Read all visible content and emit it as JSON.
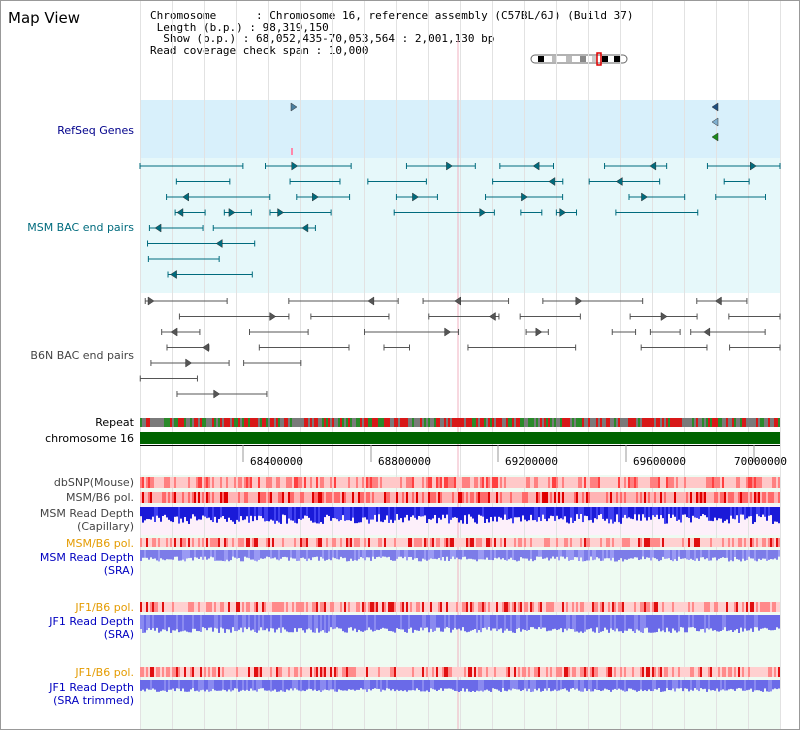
{
  "header": {
    "title": "Map View",
    "info_lines": [
      "Chromosome      : Chromosome 16, reference assembly (C57BL/6J) (Build 37)",
      " Length (b.p.) : 98,319,150",
      "  Show (b.p.) : 68,052,435-70,053,564 : 2,001,130 bp",
      "Read coverage check span : 10,000"
    ]
  },
  "tracks": {
    "refseq": "RefSeq Genes",
    "msm_bac": "MSM BAC end pairs",
    "b6n_bac": "B6N BAC end pairs",
    "repeat": "Repeat",
    "chromosome": "chromosome 16",
    "dbsnp": "dbSNP(Mouse)",
    "msm_b6_pol": "MSM/B6 pol.",
    "msm_depth_cap_1": "MSM Read Depth",
    "msm_depth_cap_2": "(Capillary)",
    "msm_b6_pol_2": "MSM/B6 pol.",
    "msm_depth_sra_1": "MSM Read Depth",
    "msm_depth_sra_2": "(SRA)",
    "jf1_b6_pol": "JF1/B6 pol.",
    "jf1_depth_sra_1": "JF1 Read Depth",
    "jf1_depth_sra_2": "(SRA)",
    "jf1_b6_pol_2": "JF1/B6 pol.",
    "jf1_depth_trim_1": "JF1 Read Depth",
    "jf1_depth_trim_2": "(SRA trimmed)"
  },
  "axis": {
    "ticks": [
      "68400000",
      "68800000",
      "69200000",
      "69600000",
      "70000000"
    ]
  },
  "colors": {
    "refseq_bg": "#d8f0fb",
    "msm_bac": "#006b7d",
    "msm_bg": "#e6f8fa",
    "b6n_bac": "#555555",
    "chromosome_bar": "#006400",
    "snp": "#ff5555",
    "depth_blue": "#2020e0",
    "depth_light": "#8080f0"
  }
}
